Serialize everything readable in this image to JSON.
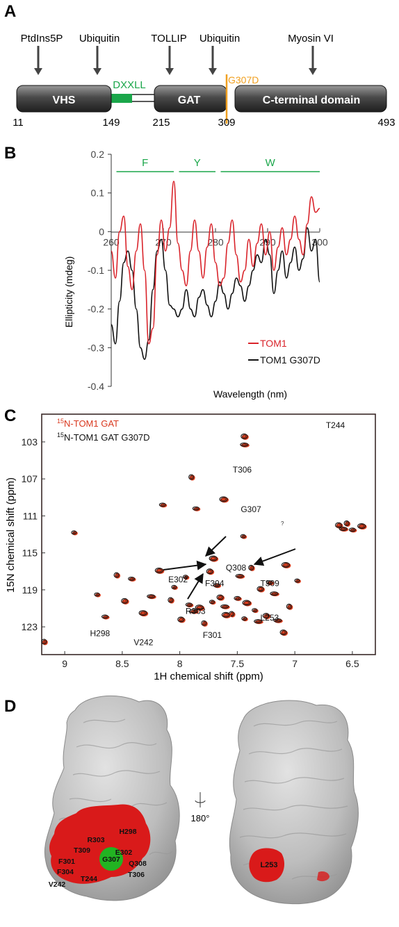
{
  "panels": {
    "a": "A",
    "b": "B",
    "c": "C",
    "d": "D"
  },
  "panel_a": {
    "binding_labels": [
      "PtdIns5P",
      "Ubiquitin",
      "TOLLIP",
      "Ubiquitin",
      "Myosin VI"
    ],
    "motif_label": "DXXLL",
    "mutation_label": "G307D",
    "domains": [
      "VHS",
      "GAT",
      "C-terminal domain"
    ],
    "positions": [
      "11",
      "149",
      "215",
      "309",
      "493"
    ],
    "colors": {
      "motif": "#1aa64a",
      "mutation": "#f0a020",
      "domain": "#555555"
    }
  },
  "panel_b": {
    "chart_data": {
      "type": "line",
      "xlabel": "Wavelength (nm)",
      "ylabel": "Ellipticity (mdeg)",
      "xlim": [
        260,
        300
      ],
      "ylim": [
        -0.4,
        0.2
      ],
      "x_ticks": [
        "260",
        "270",
        "280",
        "290",
        "300"
      ],
      "y_ticks": [
        "0.2",
        "0.1",
        "0",
        "-0.1",
        "-0.2",
        "-0.3",
        "-0.4"
      ],
      "regions": [
        {
          "label": "F",
          "range": [
            261,
            272
          ]
        },
        {
          "label": "Y",
          "range": [
            273,
            280
          ]
        },
        {
          "label": "W",
          "range": [
            281,
            300
          ]
        }
      ],
      "series": [
        {
          "name": "TOM1",
          "color": "#d9232a",
          "x": [
            260,
            260.8,
            261.6,
            262.4,
            263.2,
            264,
            264.8,
            265.6,
            266.4,
            267.2,
            268,
            268.8,
            269.6,
            270.4,
            271.2,
            272,
            272.8,
            273.6,
            274.4,
            275.2,
            276,
            276.8,
            277.6,
            278.4,
            279.2,
            280,
            280.8,
            281.6,
            282.4,
            283.2,
            284,
            284.8,
            285.6,
            286.4,
            287.2,
            288,
            288.8,
            289.6,
            290.4,
            291.2,
            292,
            292.8,
            293.6,
            294.4,
            295.2,
            296,
            296.8,
            297.6,
            298.4,
            299.2,
            300
          ],
          "y": [
            -0.05,
            -0.12,
            0.0,
            0.04,
            -0.09,
            -0.15,
            -0.05,
            0.02,
            -0.1,
            -0.29,
            -0.25,
            -0.06,
            0.03,
            -0.05,
            0.01,
            0.13,
            -0.03,
            -0.1,
            -0.14,
            -0.05,
            0.03,
            -0.05,
            -0.12,
            -0.04,
            0.02,
            -0.08,
            -0.14,
            -0.12,
            -0.03,
            0.03,
            -0.06,
            -0.13,
            -0.1,
            -0.02,
            -0.09,
            -0.03,
            0.02,
            -0.06,
            0.0,
            -0.1,
            -0.04,
            0.01,
            -0.06,
            -0.02,
            0.04,
            -0.02,
            -0.06,
            0.02,
            0.09,
            0.05,
            0.06
          ]
        },
        {
          "name": "TOM1 G307D",
          "color": "#111111",
          "x": [
            260,
            260.8,
            261.6,
            262.4,
            263.2,
            264,
            264.8,
            265.6,
            266.4,
            267.2,
            268,
            268.8,
            269.6,
            270.4,
            271.2,
            272,
            272.8,
            273.6,
            274.4,
            275.2,
            276,
            276.8,
            277.6,
            278.4,
            279.2,
            280,
            280.8,
            281.6,
            282.4,
            283.2,
            284,
            284.8,
            285.6,
            286.4,
            287.2,
            288,
            288.8,
            289.6,
            290.4,
            291.2,
            292,
            292.8,
            293.6,
            294.4,
            295.2,
            296,
            296.8,
            297.6,
            298.4,
            299.2,
            300
          ],
          "y": [
            -0.24,
            -0.29,
            -0.18,
            -0.08,
            -0.05,
            -0.1,
            -0.2,
            -0.3,
            -0.33,
            -0.28,
            -0.15,
            -0.05,
            -0.02,
            -0.1,
            -0.19,
            -0.2,
            -0.22,
            -0.2,
            -0.15,
            -0.2,
            -0.22,
            -0.17,
            -0.15,
            -0.19,
            -0.22,
            -0.18,
            -0.13,
            -0.16,
            -0.2,
            -0.16,
            -0.12,
            -0.14,
            -0.18,
            -0.14,
            -0.1,
            -0.06,
            -0.08,
            -0.02,
            -0.06,
            -0.16,
            -0.1,
            -0.05,
            -0.12,
            -0.08,
            -0.04,
            -0.1,
            -0.07,
            0.01,
            -0.05,
            -0.02,
            -0.13
          ]
        }
      ],
      "legend": "bottom-right"
    }
  },
  "panel_c": {
    "legend": [
      {
        "sup": "15",
        "text": "N-TOM1 GAT",
        "color": "#d9381e"
      },
      {
        "sup": "15",
        "text": "N-TOM1 GAT G307D",
        "color": "#111111"
      }
    ],
    "xlabel": "1H chemical shift (ppm)",
    "ylabel": "15N chemical shift (ppm)",
    "x_ticks": [
      "9",
      "8.5",
      "8",
      "7.5",
      "7",
      "6.5"
    ],
    "y_ticks": [
      "103",
      "107",
      "111",
      "115",
      "119",
      "123"
    ],
    "question_mark": "?",
    "chart_data": {
      "type": "scatter",
      "xlim": [
        9.2,
        6.3
      ],
      "ylim": [
        126,
        100
      ],
      "peaks_x": [
        8.72,
        8.48,
        8.25,
        8.08,
        7.92,
        7.83,
        7.72,
        7.65,
        7.61,
        7.55,
        7.5,
        7.42,
        7.35,
        7.25,
        7.18,
        7.05,
        8.65,
        8.32,
        8.05,
        7.99,
        7.88,
        7.79,
        7.68,
        7.6,
        7.44,
        7.3,
        7.15,
        8.55,
        8.42,
        8.18,
        7.95,
        7.74,
        7.48,
        7.38,
        7.22,
        7.08,
        6.98,
        6.62,
        6.58,
        6.55,
        6.5,
        6.42,
        8.92,
        7.44,
        7.44,
        7.9,
        8.15,
        7.71,
        7.45,
        7.1,
        7.32,
        9.18,
        7.86,
        7.62
      ],
      "peaks_y": [
        119.5,
        120.2,
        119.7,
        120.1,
        120.6,
        120.9,
        120.3,
        119.8,
        120.8,
        121.6,
        119.9,
        120.4,
        121.2,
        121.8,
        119.4,
        120.8,
        121.9,
        121.5,
        118.7,
        122.2,
        121.3,
        122.6,
        118.5,
        121.7,
        122.1,
        118.9,
        122.3,
        117.4,
        117.8,
        116.9,
        117.6,
        117.0,
        117.5,
        116.6,
        118.2,
        116.3,
        118.0,
        112.0,
        112.4,
        111.8,
        112.5,
        112.1,
        112.8,
        102.4,
        103.3,
        106.8,
        109.8,
        115.6,
        113.2,
        123.6,
        122.4,
        124.6,
        110.2,
        109.2
      ],
      "labels": [
        {
          "text": "T244",
          "x": 6.73,
          "y": 101.5
        },
        {
          "text": "T306",
          "x": 7.54,
          "y": 106.3
        },
        {
          "text": "G307",
          "x": 7.47,
          "y": 110.6
        },
        {
          "text": "Q308",
          "x": 7.6,
          "y": 116.9
        },
        {
          "text": "T309",
          "x": 7.3,
          "y": 118.6
        },
        {
          "text": "E302",
          "x": 8.1,
          "y": 118.2
        },
        {
          "text": "F304",
          "x": 7.78,
          "y": 118.6
        },
        {
          "text": "R303",
          "x": 7.95,
          "y": 121.6
        },
        {
          "text": "L253",
          "x": 7.3,
          "y": 122.3
        },
        {
          "text": "F301",
          "x": 7.8,
          "y": 124.2
        },
        {
          "text": "H298",
          "x": 8.78,
          "y": 124.0
        },
        {
          "text": "V242",
          "x": 8.4,
          "y": 125.0
        }
      ]
    }
  },
  "panel_d": {
    "rotation_label": "180°",
    "left_labels": [
      "H298",
      "R303",
      "T309",
      "E302",
      "F301",
      "Q308",
      "F304",
      "G307",
      "T306",
      "V242",
      "T244"
    ],
    "right_labels": [
      "L253"
    ],
    "colors": {
      "surface": "#b8b8b8",
      "highlight": "#d91a1a",
      "mutation": "#22b322"
    }
  }
}
